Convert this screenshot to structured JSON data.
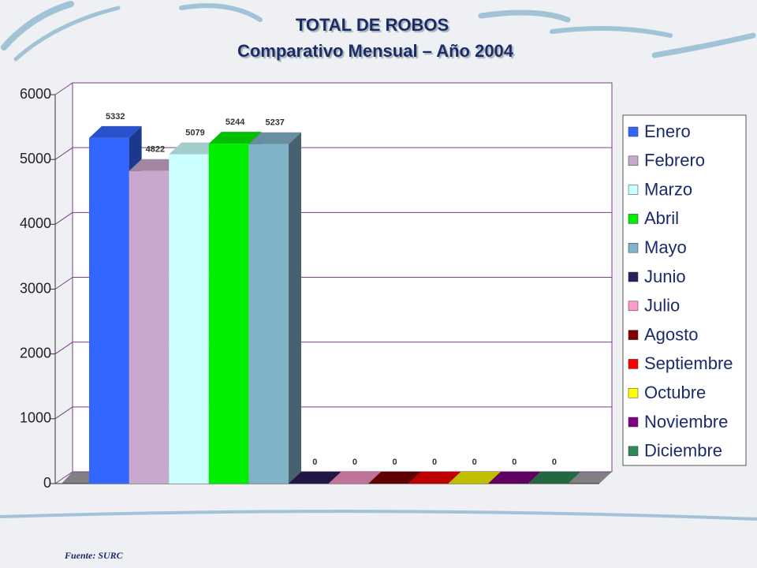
{
  "chart_data": {
    "type": "bar3d",
    "title": "TOTAL DE ROBOS",
    "subtitle": "Comparativo Mensual – Año 2004",
    "categories": [
      "Enero",
      "Febrero",
      "Marzo",
      "Abril",
      "Mayo",
      "Junio",
      "Julio",
      "Agosto",
      "Septiembre",
      "Octubre",
      "Noviembre",
      "Diciembre"
    ],
    "values": [
      5332,
      4822,
      5079,
      5244,
      5237,
      0,
      0,
      0,
      0,
      0,
      0,
      0
    ],
    "colors": [
      "#3366ff",
      "#c8a8cc",
      "#ccffff",
      "#00ee00",
      "#80b3c8",
      "#2a1f5c",
      "#ff99cc",
      "#800000",
      "#ff0000",
      "#ffff00",
      "#800080",
      "#2e8b57"
    ],
    "ylim": [
      0,
      6000
    ],
    "yticks": [
      0,
      1000,
      2000,
      3000,
      4000,
      5000,
      6000
    ],
    "grid": true,
    "legend": "right",
    "source": "Fuente: SURC"
  }
}
